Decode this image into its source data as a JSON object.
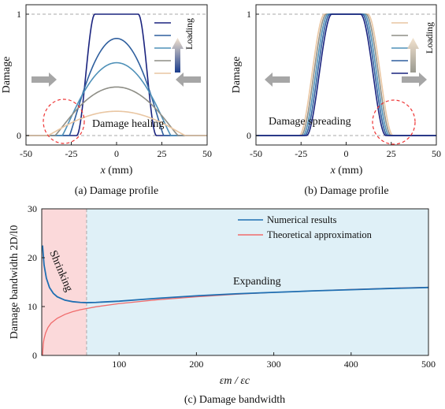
{
  "chart_data": [
    {
      "id": "a",
      "type": "line",
      "title": "",
      "caption": "(a) Damage profile",
      "xlabel_var": "x",
      "xlabel_unit": "(mm)",
      "ylabel": "Damage",
      "xlim": [
        -50,
        50
      ],
      "ylim": [
        0,
        1
      ],
      "xticks": [
        "-50",
        "-25",
        "0",
        "25",
        "50"
      ],
      "yticks": [
        "0",
        "1"
      ],
      "legend_text": "Loading",
      "annotation": "Damage healing",
      "colors": [
        "#1a237e",
        "#2f5f9e",
        "#4e90b8",
        "#8e8e86",
        "#e9c6a2"
      ],
      "series": [
        {
          "peak": 1.0,
          "halfwidth": 22,
          "flat": 17
        },
        {
          "peak": 0.8,
          "halfwidth": 26,
          "flat": 0
        },
        {
          "peak": 0.6,
          "halfwidth": 30,
          "flat": 0
        },
        {
          "peak": 0.4,
          "halfwidth": 34,
          "flat": 0
        },
        {
          "peak": 0.2,
          "halfwidth": 38,
          "flat": 0
        }
      ]
    },
    {
      "id": "b",
      "type": "line",
      "title": "",
      "caption": "(b)  Damage profile",
      "xlabel_var": "x",
      "xlabel_unit": "(mm)",
      "ylabel": "Damage",
      "xlim": [
        -50,
        50
      ],
      "ylim": [
        0,
        1
      ],
      "xticks": [
        "-50",
        "-25",
        "0",
        "25",
        "50"
      ],
      "yticks": [
        "0",
        "1"
      ],
      "legend_text": "Loading",
      "annotation": "Damage spreading",
      "colors": [
        "#e9c6a2",
        "#8e8e86",
        "#4e90b8",
        "#2f5f9e",
        "#1a237e"
      ],
      "series": [
        {
          "flat": 12,
          "edge": 26
        },
        {
          "flat": 11,
          "edge": 25
        },
        {
          "flat": 10,
          "edge": 24
        },
        {
          "flat": 9,
          "edge": 23
        },
        {
          "flat": 8,
          "edge": 22
        }
      ]
    },
    {
      "id": "c",
      "type": "line",
      "title": "",
      "caption": "(c)   Damage bandwidth",
      "ylabel": "Damage bandwidth 2D/l0",
      "xlabel": "εm / εc",
      "xlim": [
        0,
        500
      ],
      "ylim": [
        0,
        30
      ],
      "xticks": [
        "100",
        "200",
        "300",
        "400",
        "500"
      ],
      "yticks": [
        "0",
        "10",
        "20",
        "30"
      ],
      "region_divider": 58,
      "region_labels": [
        "Shrinking",
        "Expanding"
      ],
      "region_colors": [
        "#fbd9da",
        "#dff0f7"
      ],
      "series": [
        {
          "name": "Numerical results",
          "color": "#1f6fb2",
          "x": [
            1,
            3,
            6,
            10,
            15,
            20,
            30,
            40,
            50,
            58,
            70,
            100,
            150,
            200,
            250,
            300,
            350,
            400,
            450,
            500
          ],
          "y": [
            22.5,
            18.5,
            15.8,
            13.9,
            12.7,
            12.0,
            11.3,
            11.0,
            10.85,
            10.8,
            10.85,
            11.1,
            11.7,
            12.2,
            12.6,
            12.9,
            13.2,
            13.45,
            13.7,
            13.9
          ]
        },
        {
          "name": "Theoretical approximation",
          "color": "#f06b6b",
          "x": [
            1,
            2,
            3,
            5,
            8,
            12,
            20,
            30,
            40,
            50,
            58,
            70,
            100,
            150,
            200,
            250,
            300,
            350,
            400,
            450,
            500
          ],
          "y": [
            0.0,
            2.4,
            3.4,
            4.6,
            5.7,
            6.6,
            7.6,
            8.4,
            8.95,
            9.35,
            9.6,
            9.95,
            10.6,
            11.4,
            12.0,
            12.5,
            12.9,
            13.2,
            13.5,
            13.75,
            13.95
          ]
        }
      ]
    }
  ]
}
